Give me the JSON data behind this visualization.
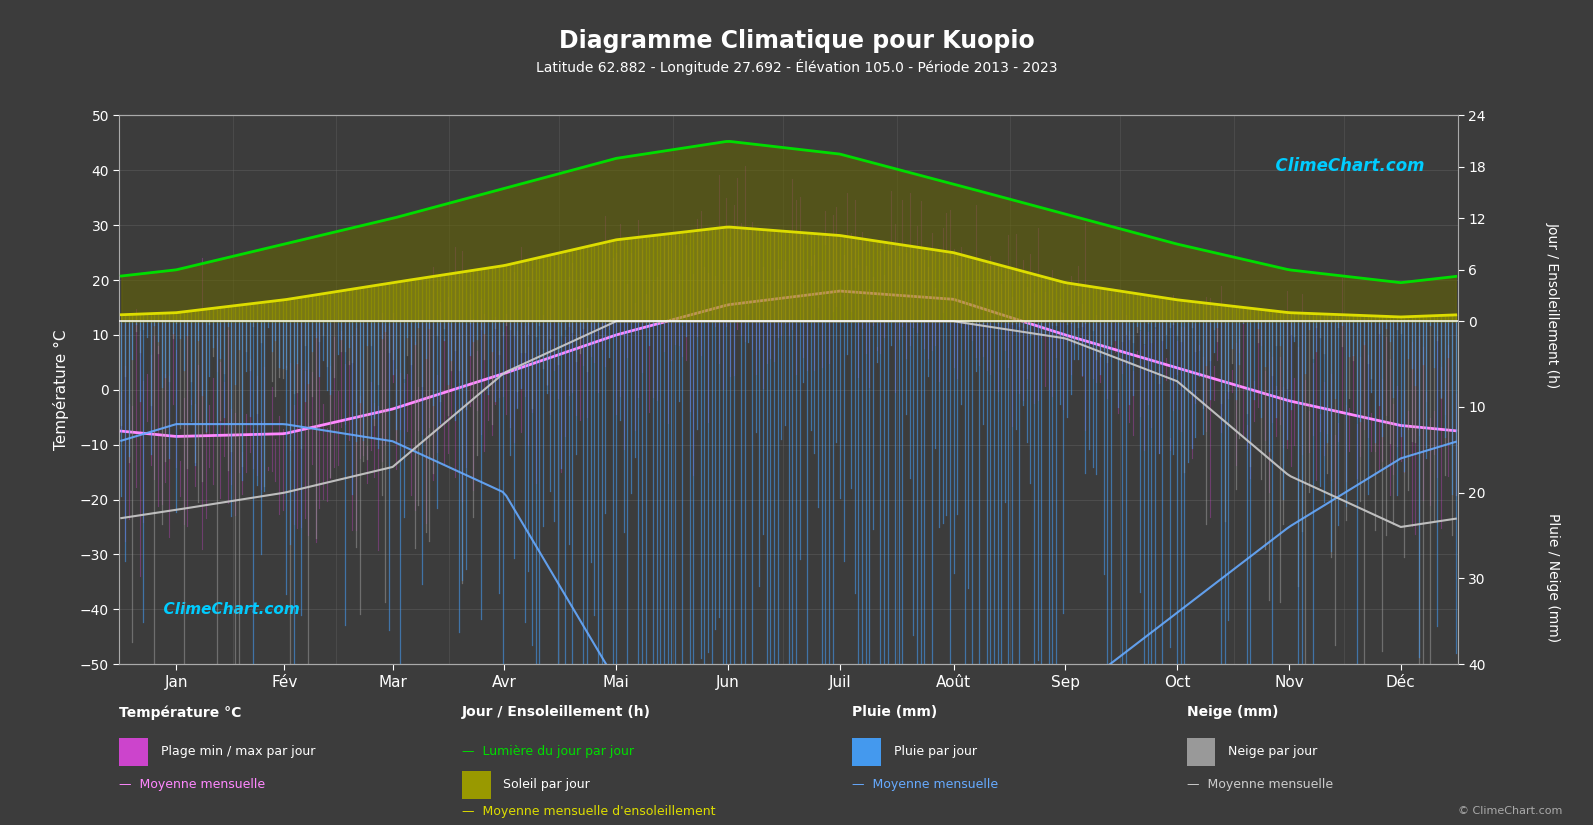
{
  "title": "Diagramme Climatique pour Kuopio",
  "subtitle": "Latitude 62.882 - Longitude 27.692 - Élévation 105.0 - Période 2013 - 2023",
  "months": [
    "Jan",
    "Fév",
    "Mar",
    "Avr",
    "Mai",
    "Jun",
    "Juil",
    "Août",
    "Sep",
    "Oct",
    "Nov",
    "Déc"
  ],
  "background_color": "#3c3c3c",
  "temp_ylim": [
    -50,
    50
  ],
  "right_ylim": [
    -40,
    24
  ],
  "temp_mean_monthly": [
    -8.5,
    -8.0,
    -3.5,
    3.0,
    10.0,
    15.5,
    18.0,
    16.5,
    10.0,
    4.0,
    -2.0,
    -6.5
  ],
  "temp_max_monthly": [
    1,
    2,
    7,
    14,
    21,
    25,
    27,
    25,
    18,
    9,
    3,
    1
  ],
  "temp_min_monthly": [
    -18,
    -18,
    -13,
    -5,
    1,
    7,
    11,
    9,
    3,
    -1,
    -8,
    -14
  ],
  "daylight_monthly": [
    6.0,
    9.0,
    12.0,
    15.5,
    19.0,
    21.0,
    19.5,
    16.0,
    12.5,
    9.0,
    6.0,
    4.5
  ],
  "sunshine_monthly": [
    1.0,
    2.5,
    4.5,
    6.5,
    9.5,
    11.0,
    10.0,
    8.0,
    4.5,
    2.5,
    1.0,
    0.5
  ],
  "rain_daily_mean_monthly": [
    10,
    10,
    12,
    18,
    40,
    58,
    63,
    58,
    42,
    32,
    22,
    14
  ],
  "snow_daily_mean_monthly": [
    20,
    18,
    15,
    5,
    0,
    0,
    0,
    0,
    1,
    5,
    16,
    22
  ],
  "rain_mean_monthly": [
    12,
    12,
    14,
    20,
    42,
    60,
    65,
    60,
    44,
    34,
    24,
    16
  ],
  "snow_mean_monthly": [
    22,
    20,
    17,
    6,
    0,
    0,
    0,
    0,
    2,
    7,
    18,
    24
  ],
  "days_per_month": [
    31,
    28,
    31,
    30,
    31,
    30,
    31,
    31,
    30,
    31,
    30,
    31
  ],
  "colors": {
    "bg": "#3c3c3c",
    "temp_bar": "#cc44cc",
    "temp_mean": "#ff88ff",
    "daylight_line": "#00dd00",
    "sunshine_bar": "#999900",
    "sunshine_line": "#dddd00",
    "rain_bar": "#4499ee",
    "snow_bar": "#999999",
    "rain_mean": "#66aaff",
    "snow_mean": "#cccccc",
    "zero_line": "#ffffff",
    "grid": "#666666",
    "text": "#ffffff",
    "axis": "#aaaaaa",
    "logo_cyan": "#00ccff"
  },
  "axis_label_left": "Température °C",
  "axis_label_right_top": "Jour / Ensoleillement (h)",
  "axis_label_right_bot": "Pluie / Neige (mm)",
  "logo_text": "ClimeChart.com",
  "copyright_text": "© ClimeChart.com"
}
